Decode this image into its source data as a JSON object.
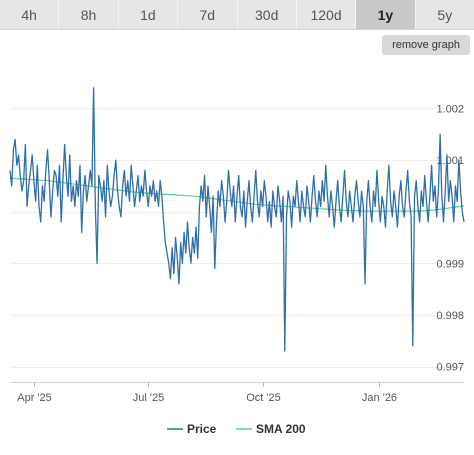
{
  "tabs": [
    {
      "label": "4h",
      "active": false
    },
    {
      "label": "8h",
      "active": false
    },
    {
      "label": "1d",
      "active": false
    },
    {
      "label": "7d",
      "active": false
    },
    {
      "label": "30d",
      "active": false
    },
    {
      "label": "120d",
      "active": false
    },
    {
      "label": "1y",
      "active": true
    },
    {
      "label": "5y",
      "active": false
    }
  ],
  "remove_graph_label": "remove graph",
  "chart_data": {
    "type": "line",
    "x_start": "2025-03-13",
    "x_end": "2026-03-10",
    "ylim": [
      0.9967,
      1.0029
    ],
    "y_ticks": [
      0.997,
      0.998,
      0.999,
      1.001,
      1.002
    ],
    "x_ticks": [
      {
        "label": "Apr '25",
        "date": "2025-04-01"
      },
      {
        "label": "Jul '25",
        "date": "2025-07-01"
      },
      {
        "label": "Oct '25",
        "date": "2025-10-01"
      },
      {
        "label": "Jan '26",
        "date": "2026-01-01"
      }
    ],
    "grid": true,
    "legend_position": "bottom",
    "series": [
      {
        "name": "Price",
        "color": "#2f6fa8",
        "values": [
          1.0008,
          1.0005,
          1.0012,
          1.0014,
          1.0009,
          1.0011,
          1.0007,
          1.0004,
          1.0006,
          1.0013,
          1.0001,
          1.0005,
          1.0008,
          1.0011,
          1.0006,
          1.0002,
          1.0009,
          1.0001,
          0.9998,
          1.0005,
          1.0002,
          1.0008,
          1.0012,
          1.0006,
          0.9999,
          1.0004,
          1.0008,
          1.0007,
          1.0003,
          1.0009,
          0.9998,
          1.0006,
          1.0013,
          1.0007,
          1.0003,
          1.0011,
          1.0002,
          1.0005,
          1.0001,
          1.0006,
          1.0003,
          1.0009,
          0.9996,
          1.0004,
          1.0007,
          1.0002,
          1.0005,
          1.0008,
          1.0005,
          1.0024,
          1.0001,
          0.999,
          1.0007,
          1.0005,
          1.0002,
          1.0006,
          0.9999,
          1.0009,
          1.0004,
          1.0001,
          1.0003,
          1.0007,
          1.001,
          1.0004,
          1.0001,
          0.9999,
          1.0005,
          1.0008,
          1.0003,
          1.0006,
          1.0002,
          1.0009,
          1.0005,
          1.0001,
          1.0004,
          1.0007,
          1.0002,
          1.0005,
          1.0003,
          1.0008,
          1.0004,
          1.0001,
          1.0005,
          1.0003,
          1.0006,
          1.0002,
          1.0004,
          1.0001,
          1.0006,
          1.0003,
          0.9998,
          0.9994,
          0.9992,
          0.999,
          0.9987,
          0.9993,
          0.9988,
          0.9995,
          0.9991,
          0.9986,
          0.9994,
          0.999,
          0.9996,
          0.9992,
          0.9998,
          0.9993,
          0.999,
          0.9995,
          0.9992,
          0.9997,
          0.9991,
          1.0001,
          1.0005,
          1.0002,
          1.0007,
          0.9999,
          1.0005,
          1.0001,
          0.9996,
          1.0003,
          0.9989,
          0.9998,
          1.0004,
          1.0001,
          1.0006,
          1.0003,
          0.9998,
          1.0002,
          1.0008,
          1.0004,
          1.0001,
          1.0005,
          0.9998,
          1.0003,
          1.0007,
          1.0001,
          0.9999,
          1.0004,
          0.9997,
          1.0002,
          1.0006,
          1.0001,
          0.9998,
          1.0003,
          1.0008,
          1.0002,
          0.9999,
          1.0004,
          1.0001,
          1.0006,
          1.0003,
          0.9998,
          1.0002,
          0.9997,
          1.0004,
          1.0001,
          0.9999,
          1.0005,
          1.0002,
          0.9998,
          1.0003,
          0.9973,
          0.9999,
          1.0004,
          1.0002,
          0.9997,
          1.0003,
          1.0001,
          1.0006,
          1.0002,
          0.9998,
          1.0004,
          1.0001,
          0.9999,
          1.0005,
          1.0002,
          0.9998,
          1.0003,
          1.0007,
          1.0002,
          0.9999,
          1.0004,
          1.0001,
          1.0006,
          1.0002,
          1.0009,
          1.0003,
          0.9999,
          1.0004,
          1.0001,
          0.9997,
          1.0002,
          1.0006,
          1.0001,
          0.9998,
          1.0003,
          1.0008,
          1.0002,
          0.9999,
          1.0004,
          1.0001,
          0.9998,
          1.0003,
          1.0006,
          1.0002,
          0.9999,
          1.0004,
          1.0001,
          0.9986,
          1.0002,
          1.0006,
          1.0001,
          0.9998,
          1.0004,
          1.0001,
          1.0008,
          1.0002,
          0.9998,
          1.0003,
          1.0001,
          0.9997,
          1.0004,
          1.0009,
          1.0002,
          0.9999,
          1.0004,
          1.0001,
          0.9997,
          1.0003,
          1.0006,
          1.0001,
          0.9999,
          1.0004,
          1.0008,
          1.0002,
          0.9999,
          0.9974,
          1.0003,
          1.0006,
          1.0001,
          0.9998,
          1.0004,
          1.0001,
          1.0007,
          1.0002,
          0.9998,
          1.0003,
          1.0009,
          1.0002,
          1.0005,
          0.9999,
          1.0004,
          1.0015,
          1.0003,
          0.9998,
          1.0004,
          1.0011,
          1.0002,
          1.0006,
          1.0003,
          0.9998,
          1.0005,
          1.0002,
          1.001,
          1.0004,
          1.0,
          0.9998
        ]
      },
      {
        "name": "SMA 200",
        "color": "#5bd08e",
        "values": [
          1.00065,
          1.00064,
          1.00063,
          1.00062,
          1.00061,
          1.0006,
          1.00058,
          1.00056,
          1.00054,
          1.00052,
          1.0005,
          1.00048,
          1.00046,
          1.00044,
          1.00042,
          1.0004,
          1.00038,
          1.00037,
          1.00036,
          1.00035,
          1.00034,
          1.00033,
          1.00032,
          1.00031,
          1.0003,
          1.00028,
          1.00026,
          1.00024,
          1.00022,
          1.0002,
          1.00018,
          1.00016,
          1.00014,
          1.00013,
          1.00012,
          1.00011,
          1.0001,
          1.00009,
          1.00008,
          1.00007,
          1.00006,
          1.00005,
          1.00004,
          1.00003,
          1.00002,
          1.00002,
          1.00001,
          1.00001,
          1.00001,
          1.00001,
          1.00001,
          1.00001,
          1.00001,
          1.00001,
          1.00002,
          1.00003,
          1.00005,
          1.00007,
          1.00009,
          1.00011
        ]
      }
    ]
  }
}
